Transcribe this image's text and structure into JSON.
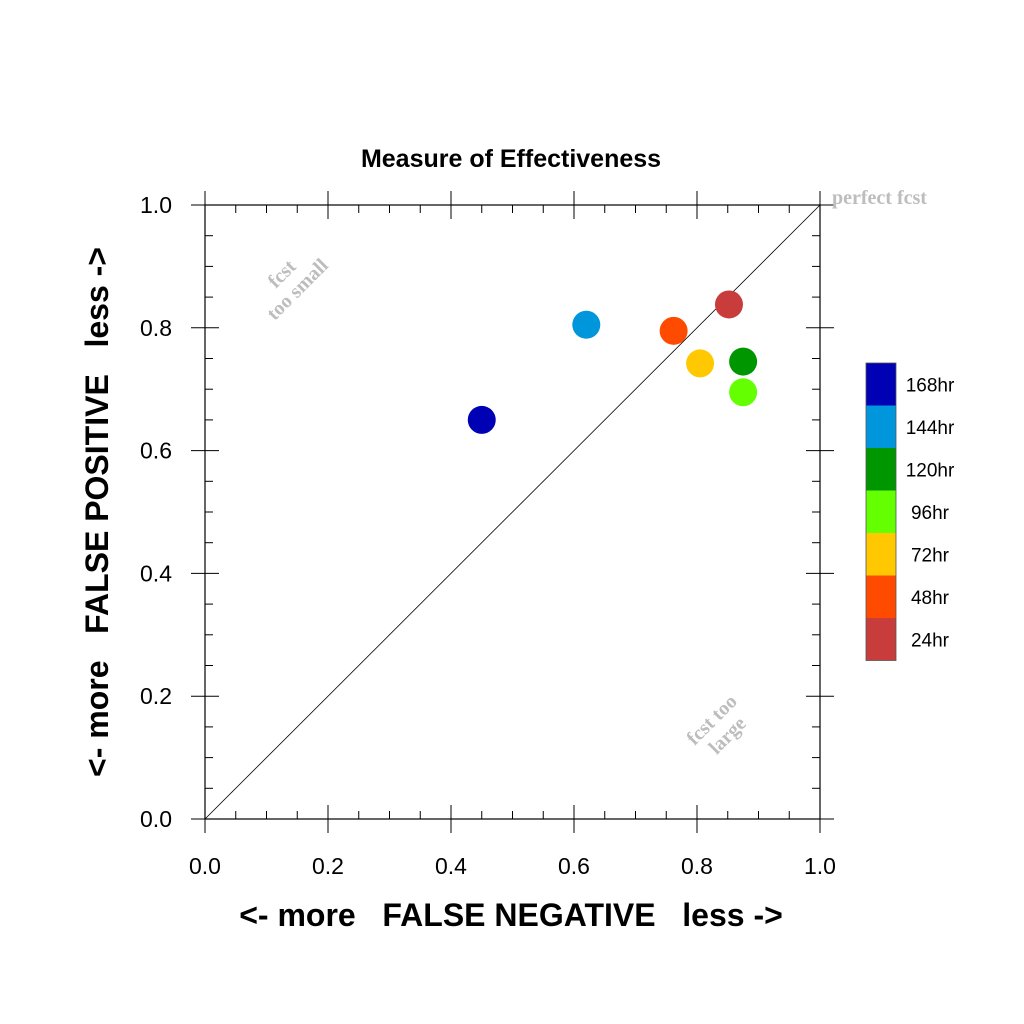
{
  "chart_data": {
    "type": "scatter",
    "title": "Measure of Effectiveness",
    "xlabel": "<- more   FALSE NEGATIVE   less ->",
    "ylabel": "<- more   FALSE POSITIVE   less ->",
    "xlim": [
      0,
      1
    ],
    "ylim": [
      0,
      1
    ],
    "xticks": [
      "0.0",
      "0.2",
      "0.4",
      "0.6",
      "0.8",
      "1.0"
    ],
    "yticks": [
      "0.0",
      "0.2",
      "0.4",
      "0.6",
      "0.8",
      "1.0"
    ],
    "grid": false,
    "reference_line": "y = x",
    "annotations": {
      "perfect": "perfect fcst",
      "small_line1": "fcst",
      "small_line2": "too small",
      "large_line1": "fcst too",
      "large_line2": "large"
    },
    "legend_position": "right",
    "series": [
      {
        "name": "168hr",
        "color": "#0000b4",
        "x": 0.45,
        "y": 0.65
      },
      {
        "name": "144hr",
        "color": "#0096dc",
        "x": 0.62,
        "y": 0.805
      },
      {
        "name": "120hr",
        "color": "#009600",
        "x": 0.875,
        "y": 0.745
      },
      {
        "name": "96hr",
        "color": "#64ff00",
        "x": 0.875,
        "y": 0.695
      },
      {
        "name": "72hr",
        "color": "#ffc800",
        "x": 0.805,
        "y": 0.742
      },
      {
        "name": "48hr",
        "color": "#ff4b00",
        "x": 0.762,
        "y": 0.795
      },
      {
        "name": "24hr",
        "color": "#c83c3c",
        "x": 0.852,
        "y": 0.838
      }
    ]
  }
}
